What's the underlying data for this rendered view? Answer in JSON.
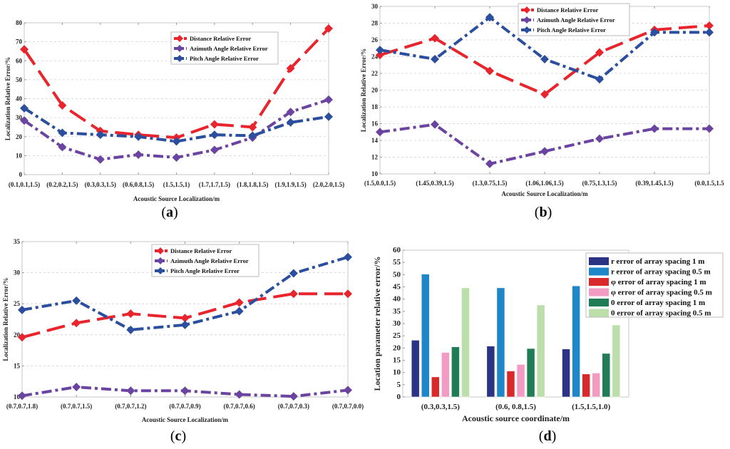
{
  "chart_data": [
    {
      "id": "a",
      "type": "line",
      "panel_label": "a",
      "title": "",
      "xlabel": "Acoustic Source Localization/m",
      "ylabel": "Localization Relative Error/%",
      "ylim": [
        0,
        80
      ],
      "yticks": [
        0,
        10,
        20,
        30,
        40,
        50,
        60,
        70,
        80
      ],
      "grid": true,
      "legend_position": "top-right",
      "categories": [
        "(0.1,0.1,1.5)",
        "(0.2,0.2,1.5)",
        "(0.3,0.3,1.5)",
        "(0.6,0.8,1.5)",
        "(1.5,1.5,1)",
        "(1.7,1.7,1.5)",
        "(1.8,1.8,1.5)",
        "(1.9,1.9,1.5)",
        "(2.0,2.0,1.5)"
      ],
      "series": [
        {
          "name": "Distance Relative Error",
          "color": "#e8242c",
          "style": "dashed",
          "values": [
            66,
            36.5,
            23,
            21,
            19.5,
            26.5,
            25,
            56,
            77
          ]
        },
        {
          "name": "Azimuth Angle Relative Error",
          "color": "#6a44a0",
          "style": "dashdot",
          "values": [
            28.5,
            14.5,
            8,
            10.5,
            9,
            13,
            19.5,
            33,
            39.5
          ]
        },
        {
          "name": "Pitch Angle Relative Error",
          "color": "#2b4f9e",
          "style": "dashdot",
          "values": [
            35,
            22,
            21,
            20,
            17.5,
            21,
            20.5,
            27.5,
            30.5
          ]
        }
      ]
    },
    {
      "id": "b",
      "type": "line",
      "panel_label": "b",
      "title": "",
      "xlabel": "Acoustic Source Localization/m",
      "ylabel": "Localization Relative Error/%",
      "ylim": [
        10,
        30
      ],
      "yticks": [
        10,
        12,
        14,
        16,
        18,
        20,
        22,
        24,
        26,
        28,
        30
      ],
      "grid": true,
      "legend_position": "top-center",
      "categories": [
        "(1.5,0.0,1.5)",
        "(1.45,0.39,1.5)",
        "(1.3,0.75,1.5)",
        "(1.06,1.06,1.5)",
        "(0.75,1.3,1.5)",
        "(0.39,1.45,1.5)",
        "(0.0,1.5,1.5"
      ],
      "series": [
        {
          "name": "Distance Relative Error",
          "color": "#e8242c",
          "style": "dashed",
          "values": [
            24.2,
            26.2,
            22.3,
            19.5,
            24.5,
            27.2,
            27.7
          ]
        },
        {
          "name": "Azimuth Angle Relative Error",
          "color": "#6a44a0",
          "style": "dashdot",
          "values": [
            15.0,
            15.9,
            11.2,
            12.7,
            14.2,
            15.4,
            15.4
          ]
        },
        {
          "name": "Pitch Angle Relative Error",
          "color": "#2b4f9e",
          "style": "dashdot",
          "values": [
            24.8,
            23.7,
            28.7,
            23.7,
            21.3,
            26.9,
            26.9
          ]
        }
      ]
    },
    {
      "id": "c",
      "type": "line",
      "panel_label": "c",
      "title": "",
      "xlabel": "Acoustic Source Localization/m",
      "ylabel": "Localization Relative Error/%",
      "ylim": [
        10,
        35
      ],
      "yticks": [
        10,
        15,
        20,
        25,
        30,
        35
      ],
      "ytick_labels": [
        "10",
        "15",
        "20",
        "25",
        "30",
        "35"
      ],
      "grid": true,
      "legend_position": "top-right",
      "categories": [
        "(0.7,0.7,1.8)",
        "(0.7,0.7,1.5)",
        "(0.7,0.7,1.2)",
        "(0.7,0.7,0.9)",
        "(0.7,0.7,0.6)",
        "(0.7,0.7,0.3)",
        "(0.7,0.7,0.0)"
      ],
      "series": [
        {
          "name": "Distance Relative Error",
          "color": "#e8242c",
          "style": "dashed",
          "values": [
            19.6,
            21.9,
            23.4,
            22.7,
            25.2,
            26.6,
            26.6
          ]
        },
        {
          "name": "Azimuth Angle Relative Error",
          "color": "#6a44a0",
          "style": "dashdot",
          "values": [
            10.2,
            11.6,
            11.0,
            11.0,
            10.4,
            10.1,
            11.1
          ]
        },
        {
          "name": "Pitch Angle Relative Error",
          "color": "#2b4f9e",
          "style": "dashdot",
          "values": [
            24.0,
            25.5,
            20.8,
            21.6,
            23.8,
            29.9,
            32.5
          ]
        }
      ]
    },
    {
      "id": "d",
      "type": "bar",
      "panel_label": "d",
      "title": "",
      "xlabel": "Acoustic source coordinate/m",
      "ylabel": "Location parameter relative error/%",
      "ylim": [
        0,
        60
      ],
      "yticks": [
        0,
        5,
        10,
        15,
        20,
        25,
        30,
        35,
        40,
        45,
        50,
        55,
        60
      ],
      "grid": false,
      "legend_position": "top-right",
      "categories": [
        "(0.3,0.3,1.5)",
        "(0.6, 0.8,1.5)",
        "(1.5,1.5,1.0)"
      ],
      "series": [
        {
          "name": "r error of array spacing 1 m",
          "color": "#2a3384",
          "values": [
            23.2,
            20.8,
            19.6
          ]
        },
        {
          "name": "r error of array spacing 0.5 m",
          "color": "#1f86c8",
          "values": [
            50.2,
            44.6,
            45.4
          ]
        },
        {
          "name": "φ error of array spacing 1 m",
          "color": "#d8292b",
          "values": [
            8.2,
            10.6,
            9.4
          ]
        },
        {
          "name": "φ error of array spacing 0.5 m",
          "color": "#f29cc3",
          "values": [
            18.2,
            13.3,
            9.8
          ]
        },
        {
          "name": " 0 error of array spacing 1 m",
          "color": "#1f7c55",
          "values": [
            20.5,
            19.8,
            17.8
          ]
        },
        {
          "name": "0 error of array spacing 0.5 m",
          "color": "#bcdeaa",
          "values": [
            44.6,
            37.6,
            29.4
          ]
        }
      ]
    }
  ]
}
